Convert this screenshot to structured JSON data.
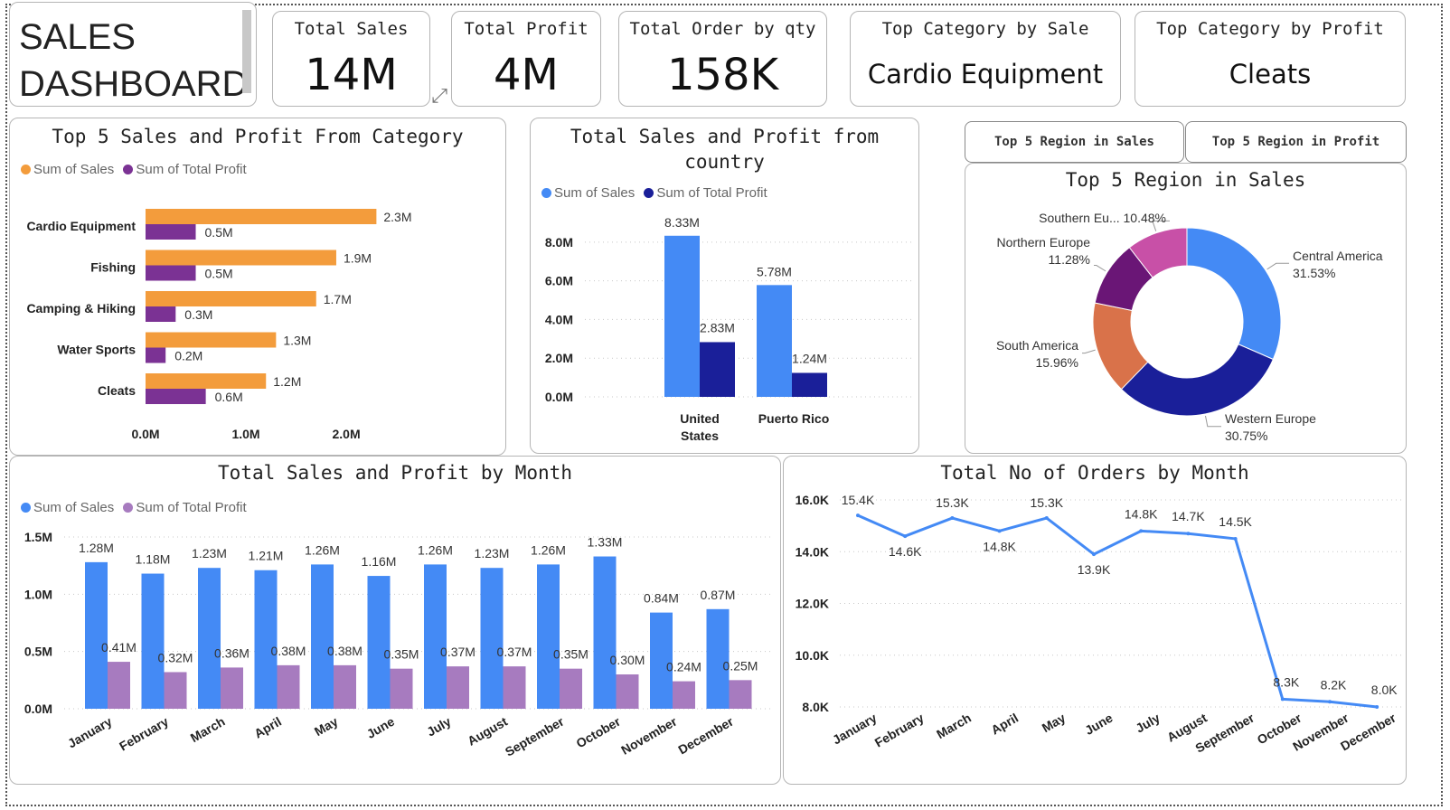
{
  "header": {
    "line1": "SALES",
    "line2": "DASHBOARD"
  },
  "kpis": [
    {
      "label": "Total Sales",
      "value": "14M"
    },
    {
      "label": "Total Profit",
      "value": "4M"
    },
    {
      "label": "Total Order by qty",
      "value": "158K"
    },
    {
      "label": "Top Category by Sale",
      "value": "Cardio Equipment"
    },
    {
      "label": "Top Category by Profit",
      "value": "Cleats"
    }
  ],
  "tabs": {
    "sales": "Top 5 Region in Sales",
    "profit": "Top 5 Region in Profit"
  },
  "colors": {
    "sales_orange": "#F39C3C",
    "profit_purple": "#7B3294",
    "sales_blue": "#448AF5",
    "profit_navy": "#1A1F99",
    "month_profit": "#A77BBF",
    "line_blue": "#448AF5",
    "donut": [
      "#448AF5",
      "#1A1F99",
      "#D9724A",
      "#6A1676",
      "#C850A7"
    ]
  },
  "chart_data": [
    {
      "type": "bar",
      "orientation": "horizontal",
      "title": "Top 5 Sales and Profit From Category",
      "categories": [
        "Cardio Equipment",
        "Fishing",
        "Camping & Hiking",
        "Water Sports",
        "Cleats"
      ],
      "series": [
        {
          "name": "Sum of Sales",
          "values": [
            2.3,
            1.9,
            1.7,
            1.3,
            1.2
          ],
          "labels": [
            "2.3M",
            "1.9M",
            "1.7M",
            "1.3M",
            "1.2M"
          ]
        },
        {
          "name": "Sum of Total Profit",
          "values": [
            0.5,
            0.5,
            0.3,
            0.2,
            0.6
          ],
          "labels": [
            "0.5M",
            "0.5M",
            "0.3M",
            "0.2M",
            "0.6M"
          ]
        }
      ],
      "xticks": [
        "0.0M",
        "1.0M",
        "2.0M"
      ],
      "xlim": [
        0,
        2.9
      ],
      "legend": "top-left"
    },
    {
      "type": "bar",
      "title": "Total Sales and Profit from country",
      "categories": [
        "United States",
        "Puerto Rico"
      ],
      "series": [
        {
          "name": "Sum of Sales",
          "values": [
            8.33,
            5.78
          ],
          "labels": [
            "8.33M",
            "5.78M"
          ]
        },
        {
          "name": "Sum of Total Profit",
          "values": [
            2.83,
            1.24
          ],
          "labels": [
            "2.83M",
            "1.24M"
          ]
        }
      ],
      "yticks": [
        "0.0M",
        "2.0M",
        "4.0M",
        "6.0M",
        "8.0M"
      ],
      "ylim": [
        0,
        8.6
      ],
      "grid": true,
      "legend": "top-left"
    },
    {
      "type": "pie",
      "variant": "donut",
      "title": "Top 5 Region in Sales",
      "slices": [
        {
          "label": "Central America",
          "value": 31.53,
          "text": "31.53%"
        },
        {
          "label": "Western Europe",
          "value": 30.75,
          "text": "30.75%"
        },
        {
          "label": "South America",
          "value": 15.96,
          "text": "15.96%"
        },
        {
          "label": "Northern Europe",
          "value": 11.28,
          "text": "11.28%"
        },
        {
          "label": "Southern Eu...",
          "value": 10.48,
          "text": "10.48%"
        }
      ]
    },
    {
      "type": "bar",
      "title": "Total Sales and Profit by Month",
      "categories": [
        "January",
        "February",
        "March",
        "April",
        "May",
        "June",
        "July",
        "August",
        "September",
        "October",
        "November",
        "December"
      ],
      "series": [
        {
          "name": "Sum of Sales",
          "values": [
            1.28,
            1.18,
            1.23,
            1.21,
            1.26,
            1.16,
            1.26,
            1.23,
            1.26,
            1.33,
            0.84,
            0.87
          ],
          "labels": [
            "1.28M",
            "1.18M",
            "1.23M",
            "1.21M",
            "1.26M",
            "1.16M",
            "1.26M",
            "1.23M",
            "1.26M",
            "1.33M",
            "0.84M",
            "0.87M"
          ]
        },
        {
          "name": "Sum of Total Profit",
          "values": [
            0.41,
            0.32,
            0.36,
            0.38,
            0.38,
            0.35,
            0.37,
            0.37,
            0.35,
            0.3,
            0.24,
            0.25
          ],
          "labels": [
            "0.41M",
            "0.32M",
            "0.36M",
            "0.38M",
            "0.38M",
            "0.35M",
            "0.37M",
            "0.37M",
            "0.35M",
            "0.30M",
            "0.24M",
            "0.25M"
          ]
        }
      ],
      "yticks": [
        "0.0M",
        "0.5M",
        "1.0M",
        "1.5M"
      ],
      "ylim": [
        0,
        1.5
      ],
      "grid": true,
      "legend": "top-left"
    },
    {
      "type": "line",
      "title": "Total No of Orders by Month",
      "categories": [
        "January",
        "February",
        "March",
        "April",
        "May",
        "June",
        "July",
        "August",
        "September",
        "October",
        "November",
        "December"
      ],
      "series": [
        {
          "name": "",
          "values": [
            15.4,
            14.6,
            15.3,
            14.8,
            15.3,
            13.9,
            14.8,
            14.7,
            14.5,
            8.3,
            8.2,
            8.0
          ],
          "labels": [
            "15.4K",
            "14.6K",
            "15.3K",
            "14.8K",
            "15.3K",
            "13.9K",
            "14.8K",
            "14.7K",
            "14.5K",
            "8.3K",
            "8.2K",
            "8.0K"
          ]
        }
      ],
      "yticks": [
        "8.0K",
        "10.0K",
        "12.0K",
        "14.0K",
        "16.0K"
      ],
      "ylim": [
        8,
        16
      ],
      "grid": true
    }
  ]
}
